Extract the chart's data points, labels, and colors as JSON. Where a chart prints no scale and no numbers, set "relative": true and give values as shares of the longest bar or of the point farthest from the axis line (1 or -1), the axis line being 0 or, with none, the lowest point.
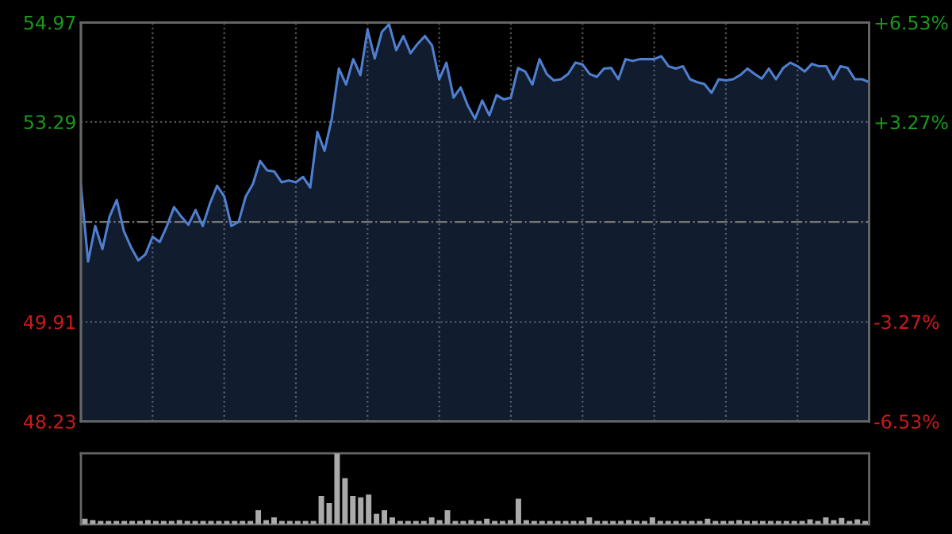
{
  "chart_data": [
    {
      "type": "area",
      "categories": [
        null,
        null,
        null,
        null,
        null,
        null,
        null,
        null,
        null,
        null,
        null,
        null,
        null,
        null,
        null,
        null,
        null,
        null,
        null,
        null,
        null,
        null,
        null,
        null,
        null,
        null,
        null,
        null,
        null,
        null,
        null,
        null,
        null,
        null,
        null,
        null,
        null,
        null,
        null,
        null,
        null,
        null,
        null,
        null,
        null,
        null,
        null,
        null,
        null,
        null,
        null,
        null,
        null,
        null,
        null,
        null,
        null,
        null,
        null,
        null,
        null,
        null,
        null,
        null,
        null,
        null,
        null,
        null,
        null,
        null,
        null,
        null,
        null,
        null,
        null,
        null,
        null,
        null,
        null,
        null,
        null,
        null,
        null,
        null,
        null,
        null,
        null,
        null,
        null,
        null,
        null,
        null,
        null,
        null,
        null,
        null,
        null,
        null,
        null,
        null,
        null,
        null,
        null,
        null,
        null,
        null,
        null,
        null,
        null,
        null,
        null
      ],
      "series": [
        {
          "color": "#4f7fd0",
          "values": [
            52.22,
            50.93,
            51.53,
            51.14,
            51.69,
            51.97,
            51.44,
            51.17,
            50.95,
            51.05,
            51.35,
            51.26,
            51.53,
            51.85,
            51.69,
            51.55,
            51.8,
            51.53,
            51.91,
            52.21,
            52.03,
            51.53,
            51.6,
            52.03,
            52.24,
            52.63,
            52.47,
            52.45,
            52.27,
            52.3,
            52.27,
            52.36,
            52.18,
            53.12,
            52.8,
            53.34,
            54.19,
            53.92,
            54.35,
            54.08,
            54.85,
            54.36,
            54.81,
            54.94,
            54.5,
            54.74,
            54.45,
            54.61,
            54.74,
            54.58,
            54.01,
            54.29,
            53.7,
            53.87,
            53.56,
            53.34,
            53.65,
            53.4,
            53.74,
            53.67,
            53.7,
            54.2,
            54.14,
            53.92,
            54.35,
            54.1,
            53.99,
            54.01,
            54.1,
            54.29,
            54.26,
            54.1,
            54.05,
            54.19,
            54.2,
            54.01,
            54.35,
            54.32,
            54.35,
            54.35,
            54.35,
            54.4,
            54.23,
            54.19,
            54.23,
            54.01,
            53.96,
            53.93,
            53.78,
            54.01,
            53.99,
            54.01,
            54.08,
            54.19,
            54.1,
            54.02,
            54.19,
            54.01,
            54.2,
            54.29,
            54.23,
            54.14,
            54.27,
            54.23,
            54.23,
            54.01,
            54.23,
            54.2,
            54.01,
            54.01,
            53.96
          ]
        }
      ],
      "ylim": [
        48.23,
        54.97
      ],
      "yticks": [
        48.23,
        49.91,
        53.29,
        54.97
      ],
      "y2lim": [
        -6.53,
        6.53
      ],
      "y2ticks": [
        {
          "value": -6.53,
          "label": "-6.53%"
        },
        {
          "value": -3.27,
          "label": "-3.27%"
        },
        {
          "value": 3.27,
          "label": "+3.27%"
        },
        {
          "value": 6.53,
          "label": "+6.53%"
        }
      ],
      "ref_lines": [
        {
          "axis": "y",
          "value": 51.6,
          "color": "#777777",
          "line_style": "dashdot"
        }
      ],
      "grid": true,
      "legend": false
    },
    {
      "type": "bar",
      "relative": true,
      "categories": [
        null,
        null,
        null,
        null,
        null,
        null,
        null,
        null,
        null,
        null,
        null,
        null,
        null,
        null,
        null,
        null,
        null,
        null,
        null,
        null,
        null,
        null,
        null,
        null,
        null,
        null,
        null,
        null,
        null,
        null,
        null,
        null,
        null,
        null,
        null,
        null,
        null,
        null,
        null,
        null,
        null,
        null,
        null,
        null,
        null,
        null,
        null,
        null,
        null,
        null,
        null,
        null,
        null,
        null,
        null,
        null,
        null,
        null,
        null,
        null,
        null,
        null,
        null,
        null,
        null,
        null,
        null,
        null,
        null,
        null,
        null,
        null,
        null,
        null,
        null,
        null,
        null,
        null,
        null,
        null,
        null,
        null,
        null,
        null,
        null,
        null,
        null,
        null,
        null,
        null,
        null,
        null,
        null,
        null,
        null,
        null,
        null,
        null,
        null,
        null
      ],
      "series": [
        {
          "color": "#aaaaaa",
          "values": [
            0.08,
            0.06,
            0.05,
            0.05,
            0.05,
            0.05,
            0.05,
            0.05,
            0.06,
            0.05,
            0.05,
            0.05,
            0.06,
            0.05,
            0.05,
            0.05,
            0.05,
            0.05,
            0.05,
            0.05,
            0.05,
            0.05,
            0.2,
            0.06,
            0.1,
            0.05,
            0.05,
            0.05,
            0.05,
            0.05,
            0.4,
            0.3,
            1.0,
            0.65,
            0.4,
            0.38,
            0.42,
            0.15,
            0.2,
            0.1,
            0.05,
            0.05,
            0.05,
            0.05,
            0.1,
            0.06,
            0.2,
            0.05,
            0.05,
            0.06,
            0.05,
            0.08,
            0.05,
            0.05,
            0.06,
            0.36,
            0.06,
            0.05,
            0.05,
            0.05,
            0.05,
            0.05,
            0.05,
            0.05,
            0.1,
            0.05,
            0.05,
            0.05,
            0.05,
            0.06,
            0.05,
            0.05,
            0.1,
            0.05,
            0.05,
            0.05,
            0.05,
            0.05,
            0.05,
            0.08,
            0.05,
            0.05,
            0.05,
            0.06,
            0.05,
            0.05,
            0.05,
            0.05,
            0.05,
            0.05,
            0.05,
            0.05,
            0.07,
            0.05,
            0.1,
            0.06,
            0.09,
            0.05,
            0.07,
            0.05
          ]
        }
      ]
    }
  ]
}
